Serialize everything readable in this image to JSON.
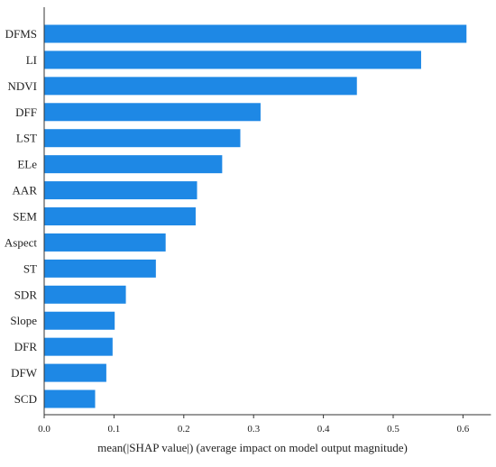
{
  "chart_data": {
    "type": "bar",
    "orientation": "horizontal",
    "categories": [
      "DFMS",
      "LI",
      "NDVI",
      "DFF",
      "LST",
      "ELe",
      "AAR",
      "SEM",
      "Aspect",
      "ST",
      "SDR",
      "Slope",
      "DFR",
      "DFW",
      "SCD"
    ],
    "values": [
      0.605,
      0.54,
      0.448,
      0.31,
      0.281,
      0.255,
      0.219,
      0.217,
      0.174,
      0.16,
      0.117,
      0.101,
      0.098,
      0.089,
      0.073
    ],
    "xlabel": "mean(|SHAP value|) (average impact on model output magnitude)",
    "xticks": [
      "0.0",
      "0.1",
      "0.2",
      "0.3",
      "0.4",
      "0.5",
      "0.6"
    ],
    "xlim": [
      0,
      0.64
    ],
    "grid": false,
    "bar_color": "#1E88E5"
  }
}
